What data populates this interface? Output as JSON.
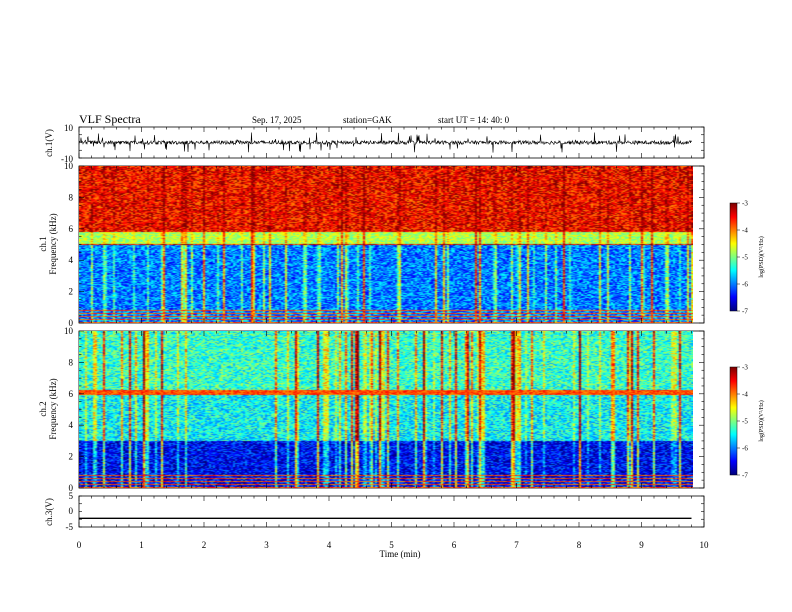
{
  "header": {
    "title": "VLF  Spectra",
    "date": "Sep. 17, 2025",
    "station": "station=GAK",
    "start_ut": "start  UT  =    14: 40: 0"
  },
  "chart_data": [
    {
      "type": "line",
      "name": "ch1-waveform",
      "ylabel": "ch.1(V)",
      "ylim": [
        -10,
        10
      ],
      "yticks": [
        "10",
        "-10"
      ],
      "xlim": [
        0,
        10
      ]
    },
    {
      "type": "heatmap",
      "name": "ch1-spectrogram",
      "ylabel_top": "ch.1",
      "ylabel": "Frequency  (kHz)",
      "ylim": [
        0,
        10
      ],
      "yticks": [
        "0",
        "2",
        "4",
        "6",
        "8",
        "10"
      ],
      "xlim": [
        0,
        9.8
      ],
      "colorbar": {
        "label": "log(PSD)(V²/Hz)",
        "range": [
          -7,
          -3
        ],
        "ticks": [
          "-3",
          "-4",
          "-5",
          "-6",
          "-7"
        ]
      },
      "description_bands": [
        {
          "from_khz": 0,
          "to_khz": 5,
          "level": -6
        },
        {
          "from_khz": 5,
          "to_khz": 10,
          "level": -3.5
        }
      ]
    },
    {
      "type": "heatmap",
      "name": "ch2-spectrogram",
      "ylabel_top": "ch.2",
      "ylabel": "Frequency  (kHz)",
      "ylim": [
        0,
        10
      ],
      "yticks": [
        "0",
        "2",
        "4",
        "6",
        "8",
        "10"
      ],
      "xlim": [
        0,
        9.8
      ],
      "colorbar": {
        "label": "log(PSD)(V²/Hz)",
        "range": [
          -7,
          -3
        ],
        "ticks": [
          "-3",
          "-4",
          "-5",
          "-6",
          "-7"
        ]
      },
      "description_bands": [
        {
          "from_khz": 0,
          "to_khz": 3,
          "level": -6.5
        },
        {
          "from_khz": 3,
          "to_khz": 6,
          "level": -5.5
        },
        {
          "from_khz": 6,
          "to_khz": 10,
          "level": -5.3
        }
      ]
    },
    {
      "type": "line",
      "name": "ch3-waveform",
      "ylabel": "ch.3(V)",
      "ylim": [
        -5,
        5
      ],
      "yticks": [
        "5",
        "0",
        "-5"
      ],
      "xlim": [
        0,
        10
      ],
      "value_v": -2.2
    }
  ],
  "xaxis": {
    "label": "Time  (min)",
    "range": [
      0,
      10
    ],
    "ticks": [
      "0",
      "1",
      "2",
      "3",
      "4",
      "5",
      "6",
      "7",
      "8",
      "9",
      "10"
    ]
  }
}
